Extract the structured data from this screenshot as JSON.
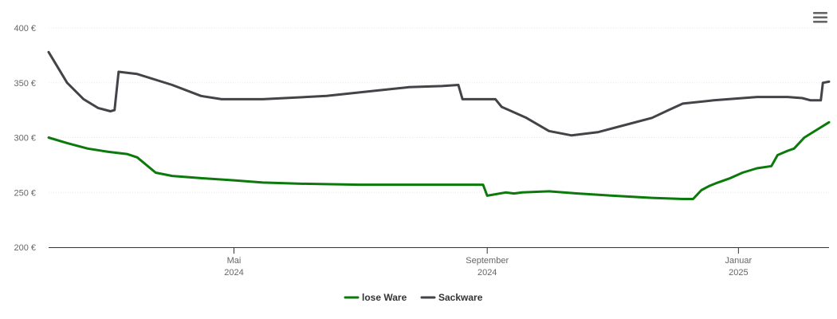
{
  "chart_data": {
    "type": "line",
    "y_ticks": [
      "400 €",
      "350 €",
      "300 €",
      "250 €",
      "200 €"
    ],
    "y_tick_values": [
      400,
      350,
      300,
      250,
      200
    ],
    "ylim": [
      200,
      400
    ],
    "x_range": [
      "2024-02-01",
      "2025-02-14"
    ],
    "x_ticks": [
      {
        "date": "2024-05-01",
        "line1": "Mai",
        "line2": "2024"
      },
      {
        "date": "2024-09-01",
        "line1": "September",
        "line2": "2024"
      },
      {
        "date": "2025-01-01",
        "line1": "Januar",
        "line2": "2025"
      }
    ],
    "grid": true,
    "legend_position": "bottom-center",
    "series": [
      {
        "name": "lose Ware",
        "color": "#0b7a0b",
        "points": [
          [
            "2024-02-01",
            300
          ],
          [
            "2024-02-10",
            295
          ],
          [
            "2024-02-20",
            290
          ],
          [
            "2024-03-01",
            287
          ],
          [
            "2024-03-10",
            285
          ],
          [
            "2024-03-15",
            282
          ],
          [
            "2024-03-24",
            268
          ],
          [
            "2024-04-01",
            265
          ],
          [
            "2024-04-15",
            263
          ],
          [
            "2024-05-01",
            261
          ],
          [
            "2024-05-15",
            259
          ],
          [
            "2024-06-01",
            258
          ],
          [
            "2024-07-01",
            257
          ],
          [
            "2024-08-01",
            257
          ],
          [
            "2024-08-30",
            257
          ],
          [
            "2024-09-01",
            247
          ],
          [
            "2024-09-10",
            250
          ],
          [
            "2024-09-14",
            249
          ],
          [
            "2024-09-18",
            250
          ],
          [
            "2024-10-01",
            251
          ],
          [
            "2024-10-15",
            249
          ],
          [
            "2024-11-01",
            247
          ],
          [
            "2024-11-20",
            245
          ],
          [
            "2024-12-05",
            244
          ],
          [
            "2024-12-10",
            244
          ],
          [
            "2024-12-14",
            252
          ],
          [
            "2024-12-18",
            256
          ],
          [
            "2024-12-22",
            259
          ],
          [
            "2024-12-28",
            263
          ],
          [
            "2025-01-03",
            268
          ],
          [
            "2025-01-10",
            272
          ],
          [
            "2025-01-17",
            274
          ],
          [
            "2025-01-20",
            284
          ],
          [
            "2025-01-25",
            288
          ],
          [
            "2025-01-28",
            290
          ],
          [
            "2025-02-02",
            300
          ],
          [
            "2025-02-08",
            307
          ],
          [
            "2025-02-14",
            314
          ]
        ]
      },
      {
        "name": "Sackware",
        "color": "#434348",
        "points": [
          [
            "2024-02-01",
            378
          ],
          [
            "2024-02-10",
            350
          ],
          [
            "2024-02-18",
            335
          ],
          [
            "2024-02-25",
            327
          ],
          [
            "2024-03-02",
            324
          ],
          [
            "2024-03-04",
            325
          ],
          [
            "2024-03-06",
            360
          ],
          [
            "2024-03-15",
            358
          ],
          [
            "2024-04-01",
            348
          ],
          [
            "2024-04-15",
            338
          ],
          [
            "2024-04-25",
            335
          ],
          [
            "2024-05-15",
            335
          ],
          [
            "2024-06-15",
            338
          ],
          [
            "2024-07-10",
            343
          ],
          [
            "2024-07-25",
            346
          ],
          [
            "2024-08-10",
            347
          ],
          [
            "2024-08-18",
            348
          ],
          [
            "2024-08-20",
            335
          ],
          [
            "2024-09-05",
            335
          ],
          [
            "2024-09-08",
            328
          ],
          [
            "2024-09-20",
            318
          ],
          [
            "2024-10-01",
            306
          ],
          [
            "2024-10-12",
            302
          ],
          [
            "2024-10-25",
            305
          ],
          [
            "2024-11-08",
            312
          ],
          [
            "2024-11-20",
            318
          ],
          [
            "2024-11-28",
            325
          ],
          [
            "2024-12-05",
            331
          ],
          [
            "2024-12-20",
            334
          ],
          [
            "2025-01-10",
            337
          ],
          [
            "2025-01-25",
            337
          ],
          [
            "2025-02-01",
            336
          ],
          [
            "2025-02-05",
            334
          ],
          [
            "2025-02-10",
            334
          ],
          [
            "2025-02-11",
            350
          ],
          [
            "2025-02-14",
            351
          ]
        ]
      }
    ]
  },
  "menu_icon": "hamburger-menu-icon"
}
